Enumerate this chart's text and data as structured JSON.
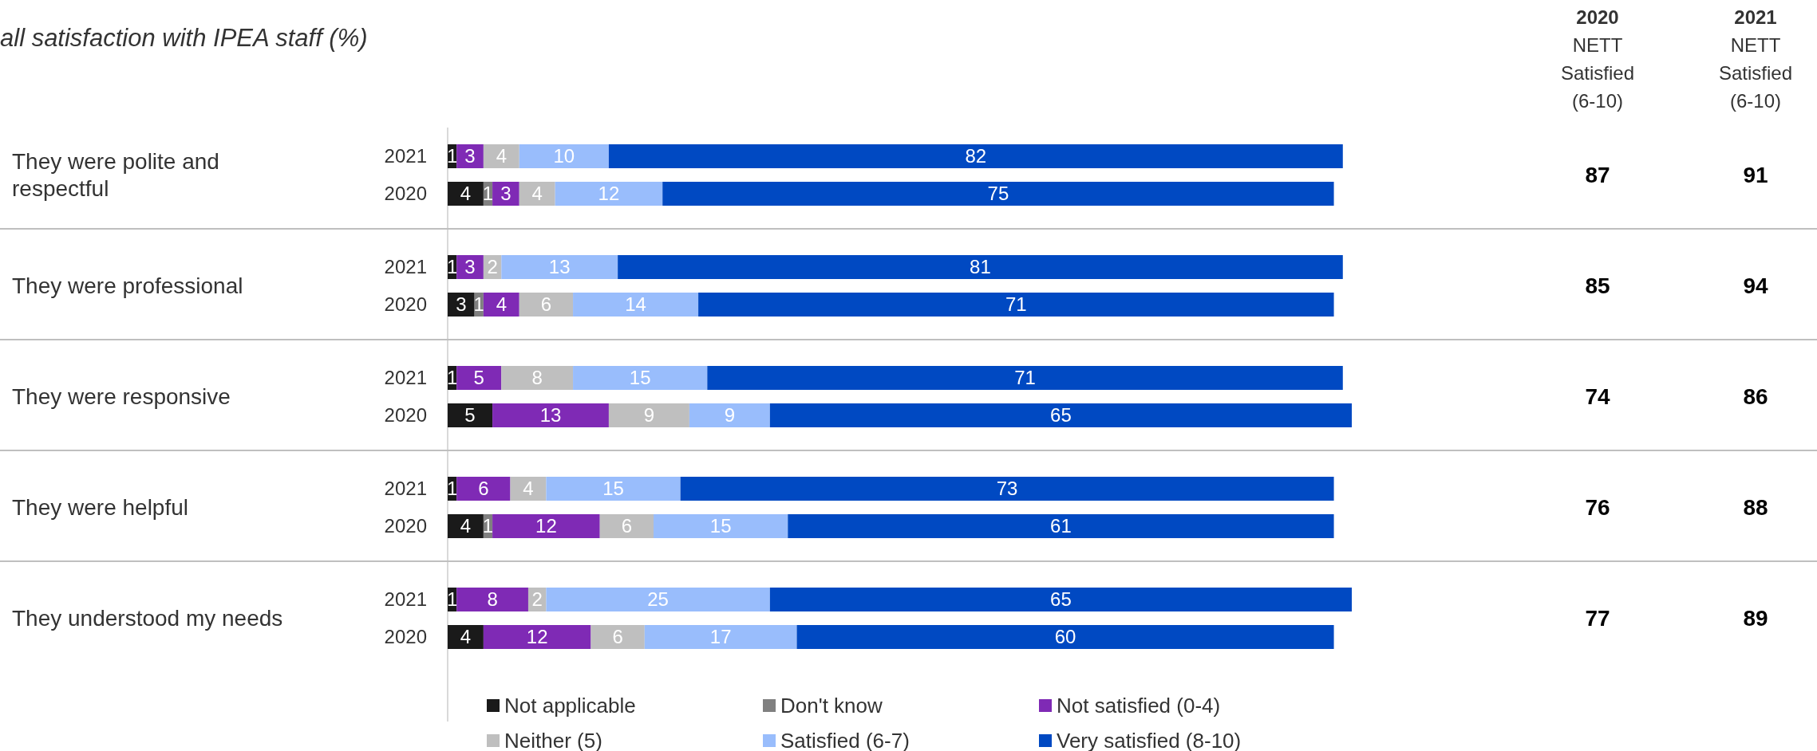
{
  "chart_data": {
    "type": "bar",
    "orientation": "horizontal",
    "stacked": true,
    "title": "all satisfaction with IPEA staff (%)",
    "categories": [
      "2021",
      "2020",
      "2021",
      "2020",
      "2021",
      "2020",
      "2021",
      "2020",
      "2021",
      "2020"
    ],
    "series": [
      {
        "name": "Not applicable",
        "color": "#1a1a1a",
        "values": [
          1,
          4,
          1,
          3,
          1,
          5,
          1,
          4,
          1,
          4
        ]
      },
      {
        "name": "Don't know",
        "color": "#808080",
        "values": [
          null,
          1,
          null,
          1,
          null,
          null,
          null,
          1,
          null,
          null
        ]
      },
      {
        "name": "Not satisfied (0-4)",
        "color": "#7f2ab5",
        "values": [
          3,
          3,
          3,
          4,
          5,
          13,
          6,
          12,
          8,
          12
        ]
      },
      {
        "name": "Neither (5)",
        "color": "#bfbfbf",
        "values": [
          4,
          4,
          2,
          6,
          8,
          9,
          4,
          6,
          2,
          6
        ]
      },
      {
        "name": "Satisfied (6-7)",
        "color": "#99bdfc",
        "values": [
          10,
          12,
          13,
          14,
          15,
          9,
          15,
          15,
          25,
          17
        ]
      },
      {
        "name": "Very satisfied (8-10)",
        "color": "#0049c2",
        "values": [
          82,
          75,
          81,
          71,
          71,
          65,
          73,
          61,
          65,
          60
        ]
      }
    ],
    "data_labels": true,
    "annotations": [
      "They were polite and respectful",
      "They were professional",
      "They were responsive",
      "They were helpful",
      "They understood my needs",
      "2020\nNETT\nSatisfied\n(6-10)",
      "2021\nNETT\nSatisfied\n(6-10)",
      "87",
      "91",
      "85",
      "94",
      "74",
      "86",
      "76",
      "88",
      "77",
      "89"
    ],
    "legend": "bottom"
  }
}
